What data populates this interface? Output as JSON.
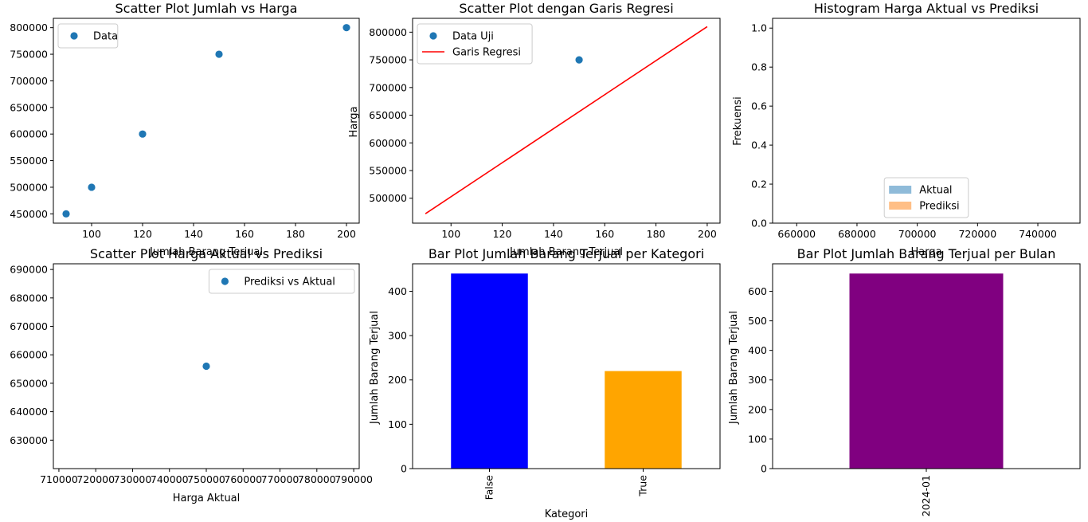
{
  "chart_data": [
    {
      "type": "scatter",
      "title": "Scatter Plot Jumlah vs Harga",
      "xlabel": "Jumlah Barang Terjual",
      "ylabel": "",
      "xlim": [
        85,
        205
      ],
      "ylim": [
        432500,
        817500
      ],
      "xticks": [
        100,
        120,
        140,
        160,
        180,
        200
      ],
      "yticks": [
        450000,
        500000,
        550000,
        600000,
        650000,
        700000,
        750000,
        800000
      ],
      "legend": {
        "position": "top-left",
        "entries": [
          {
            "label": "Data",
            "kind": "point",
            "color": "#1f77b4"
          }
        ]
      },
      "series": [
        {
          "name": "Data",
          "color": "#1f77b4",
          "x": [
            90,
            100,
            120,
            150,
            200
          ],
          "y": [
            450000,
            500000,
            600000,
            750000,
            800000
          ]
        }
      ]
    },
    {
      "type": "scatter",
      "title": "Scatter Plot dengan Garis Regresi",
      "xlabel": "Jumlah Barang Terjual",
      "ylabel": "Harga",
      "xlim": [
        85,
        205
      ],
      "ylim": [
        455000,
        825000
      ],
      "xticks": [
        100,
        120,
        140,
        160,
        180,
        200
      ],
      "yticks": [
        500000,
        550000,
        600000,
        650000,
        700000,
        750000,
        800000
      ],
      "legend": {
        "position": "top-left",
        "entries": [
          {
            "label": "Data Uji",
            "kind": "point",
            "color": "#1f77b4"
          },
          {
            "label": "Garis Regresi",
            "kind": "line",
            "color": "#ff0000"
          }
        ]
      },
      "series": [
        {
          "name": "Data Uji",
          "color": "#1f77b4",
          "x": [
            150
          ],
          "y": [
            750000
          ]
        }
      ],
      "lines": [
        {
          "name": "Garis Regresi",
          "color": "#ff0000",
          "x": [
            90,
            200
          ],
          "y": [
            472000,
            810000
          ]
        }
      ]
    },
    {
      "type": "histogram",
      "title": "Histogram Harga Aktual vs Prediksi",
      "xlabel": "Harga",
      "ylabel": "Frekuensi",
      "xlim": [
        652000,
        754000
      ],
      "ylim": [
        0,
        1.05
      ],
      "xticks": [
        660000,
        680000,
        700000,
        720000,
        740000
      ],
      "yticks": [
        0.0,
        0.2,
        0.4,
        0.6,
        0.8,
        1.0
      ],
      "ytick_labels": [
        "0.0",
        "0.2",
        "0.4",
        "0.6",
        "0.8",
        "1.0"
      ],
      "legend": {
        "position": "lower-center",
        "entries": [
          {
            "label": "Aktual",
            "kind": "patch",
            "color": "#8fbbd9"
          },
          {
            "label": "Prediksi",
            "kind": "patch",
            "color": "#ffbf86"
          }
        ]
      },
      "series": []
    },
    {
      "type": "scatter",
      "title": "Scatter Plot Harga Aktual vs Prediksi",
      "xlabel": "Harga Aktual",
      "ylabel": "",
      "xlim": [
        708500,
        791500
      ],
      "ylim": [
        620000,
        692000
      ],
      "xticks": [
        710000,
        720000,
        730000,
        740000,
        750000,
        760000,
        770000,
        780000,
        790000
      ],
      "yticks": [
        630000,
        640000,
        650000,
        660000,
        670000,
        680000,
        690000
      ],
      "legend": {
        "position": "top-right",
        "entries": [
          {
            "label": "Prediksi vs Aktual",
            "kind": "point",
            "color": "#1f77b4"
          }
        ]
      },
      "series": [
        {
          "name": "Prediksi vs Aktual",
          "color": "#1f77b4",
          "x": [
            750000
          ],
          "y": [
            656000
          ]
        }
      ]
    },
    {
      "type": "bar",
      "title": "Bar Plot Jumlah Barang Terjual per Kategori",
      "xlabel": "Kategori",
      "ylabel": "Jumlah Barang Terjual",
      "categories": [
        "False",
        "True"
      ],
      "values": [
        440,
        220
      ],
      "colors": [
        "#0000ff",
        "#ffa500"
      ],
      "ylim": [
        0,
        462
      ],
      "yticks": [
        0,
        100,
        200,
        300,
        400
      ]
    },
    {
      "type": "bar",
      "title": "Bar Plot Jumlah Barang Terjual per Bulan",
      "xlabel": "",
      "ylabel": "Jumlah Barang Terjual",
      "categories": [
        "2024-01"
      ],
      "values": [
        660
      ],
      "colors": [
        "#800080"
      ],
      "ylim": [
        0,
        693
      ],
      "yticks": [
        0,
        100,
        200,
        300,
        400,
        500,
        600
      ]
    }
  ]
}
